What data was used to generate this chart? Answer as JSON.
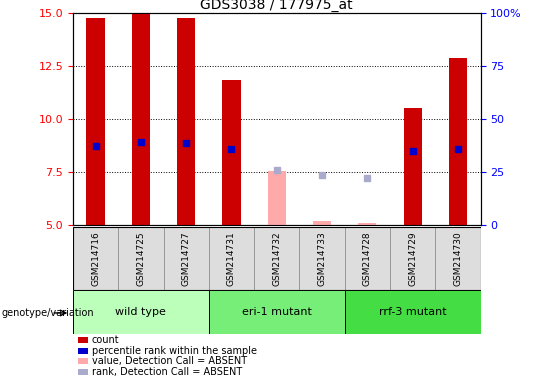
{
  "title": "GDS3038 / 177975_at",
  "samples": [
    "GSM214716",
    "GSM214725",
    "GSM214727",
    "GSM214731",
    "GSM214732",
    "GSM214733",
    "GSM214728",
    "GSM214729",
    "GSM214730"
  ],
  "groups": [
    {
      "label": "wild type",
      "indices": [
        0,
        1,
        2
      ],
      "color": "#bbffbb"
    },
    {
      "label": "eri-1 mutant",
      "indices": [
        3,
        4,
        5
      ],
      "color": "#77ee77"
    },
    {
      "label": "rrf-3 mutant",
      "indices": [
        6,
        7,
        8
      ],
      "color": "#44dd44"
    }
  ],
  "count_values": [
    14.8,
    14.95,
    14.8,
    11.85,
    null,
    null,
    null,
    10.5,
    12.9
  ],
  "count_absent": [
    null,
    null,
    null,
    null,
    7.55,
    5.15,
    5.1,
    null,
    null
  ],
  "percentile_present": [
    8.7,
    8.9,
    8.85,
    8.6,
    null,
    null,
    null,
    8.5,
    8.6
  ],
  "percentile_absent": [
    null,
    null,
    null,
    null,
    7.6,
    7.35,
    7.2,
    null,
    null
  ],
  "ylim_left": [
    5,
    15
  ],
  "ylim_right": [
    0,
    100
  ],
  "yticks_left": [
    5,
    7.5,
    10,
    12.5,
    15
  ],
  "yticks_right": [
    0,
    25,
    50,
    75,
    100
  ],
  "dotted_lines": [
    7.5,
    10,
    12.5
  ],
  "bar_color_present": "#cc0000",
  "bar_color_absent": "#ffaaaa",
  "dot_color_present": "#0000cc",
  "dot_color_absent": "#aaaacc",
  "ybase": 5,
  "legend_items": [
    {
      "label": "count",
      "color": "#cc0000"
    },
    {
      "label": "percentile rank within the sample",
      "color": "#0000cc"
    },
    {
      "label": "value, Detection Call = ABSENT",
      "color": "#ffaaaa"
    },
    {
      "label": "rank, Detection Call = ABSENT",
      "color": "#aaaacc"
    }
  ]
}
